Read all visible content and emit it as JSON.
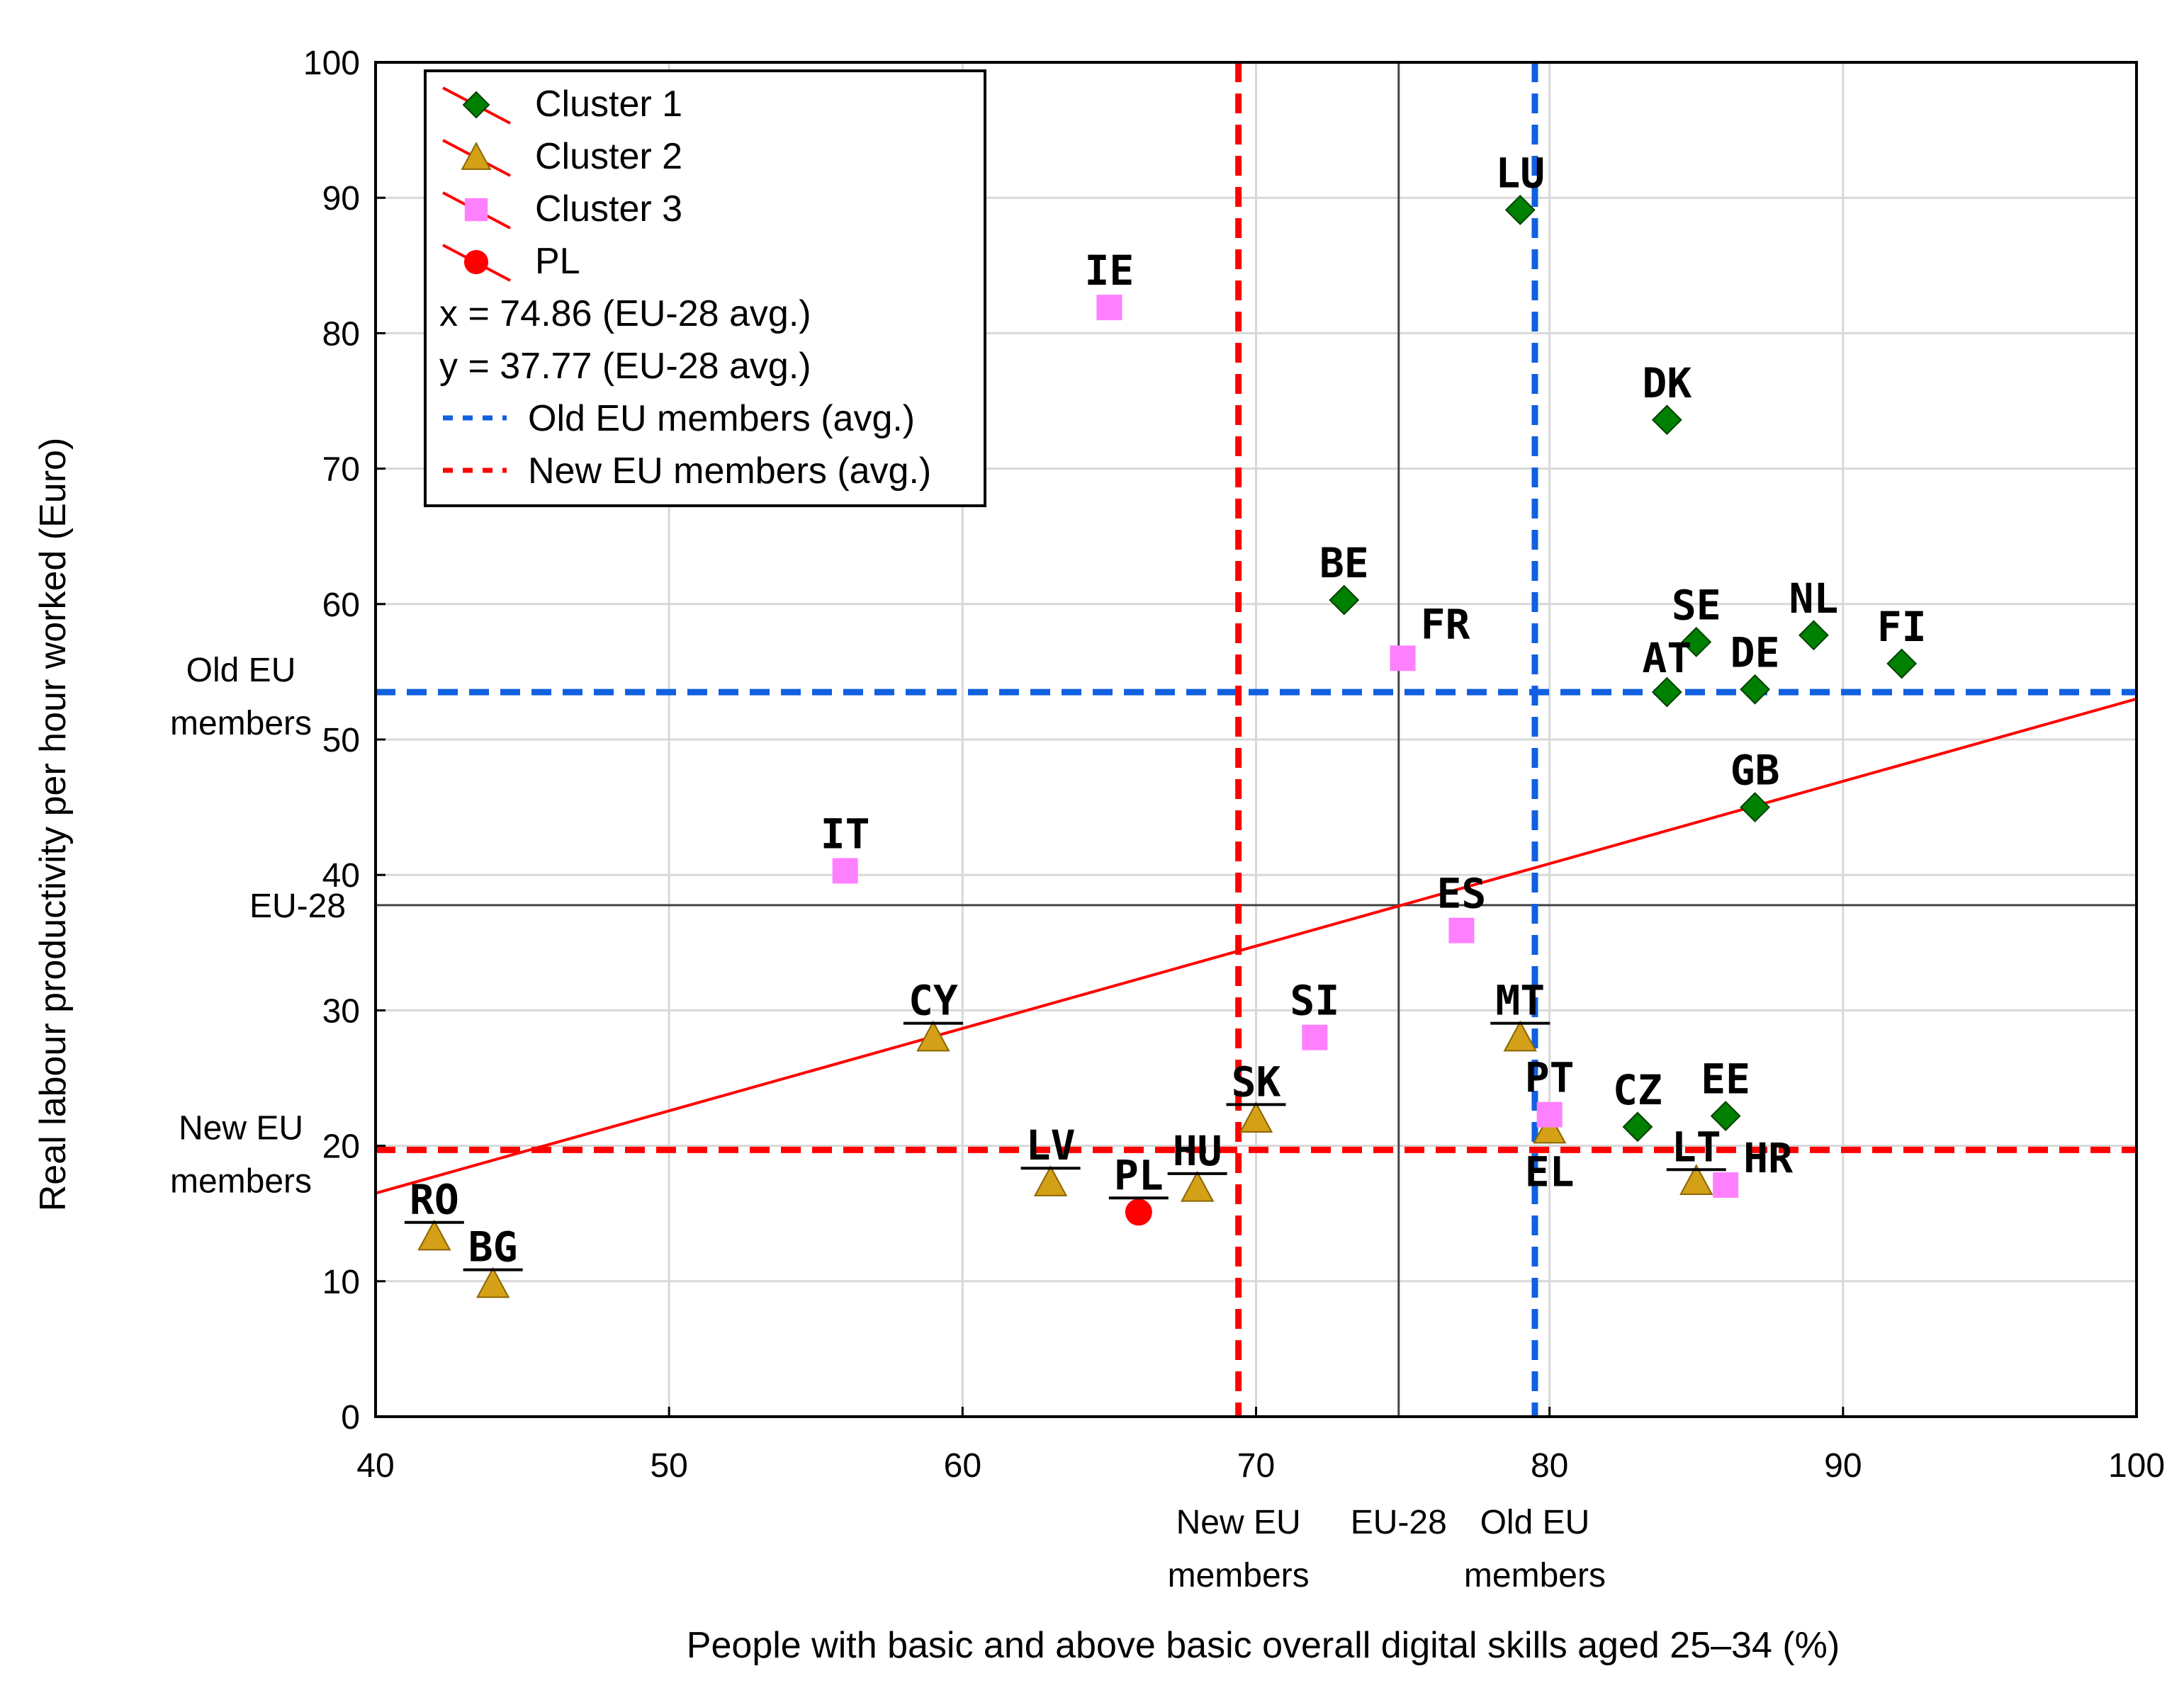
{
  "chart_data": {
    "type": "scatter",
    "xlabel": "People with basic and above basic overall digital skills aged 25–34 (%)",
    "ylabel": "Real labour productivity per hour worked (Euro)",
    "xlim": [
      40,
      100
    ],
    "ylim": [
      0,
      100
    ],
    "x_ticks": [
      "40",
      "50",
      "60",
      "70",
      "80",
      "90",
      "100"
    ],
    "y_ticks": [
      "0",
      "10",
      "20",
      "30",
      "40",
      "50",
      "60",
      "70",
      "80",
      "90",
      "100"
    ],
    "grid": true,
    "legend_position": "top-left",
    "colors": {
      "cluster1": "#008000",
      "cluster2": "#d4a017",
      "cluster3": "#ff80ff",
      "pl": "#ff0000",
      "old_eu": "#1060e0",
      "new_eu": "#ff0000",
      "eu28": "#444444",
      "trend": "#ff0000",
      "grid": "#d8d8d8"
    },
    "legend": [
      {
        "key": "cluster1",
        "label": "Cluster 1",
        "marker": "diamond"
      },
      {
        "key": "cluster2",
        "label": "Cluster 2",
        "marker": "triangle"
      },
      {
        "key": "cluster3",
        "label": "Cluster 3",
        "marker": "square"
      },
      {
        "key": "pl",
        "label": "PL",
        "marker": "circle"
      },
      {
        "key": "eu_x",
        "label": "x = 74.86 (EU-28 avg.)",
        "marker": "none"
      },
      {
        "key": "eu_y",
        "label": "y = 37.77 (EU-28 avg.)",
        "marker": "none"
      },
      {
        "key": "old_eu",
        "label": "Old EU members (avg.)",
        "marker": "dash-blue"
      },
      {
        "key": "new_eu",
        "label": "New EU members (avg.)",
        "marker": "dash-red"
      }
    ],
    "reference_lines": {
      "eu28": {
        "x": 74.86,
        "y": 37.77,
        "label": "EU-28"
      },
      "old_eu": {
        "x": 79.5,
        "y": 53.5,
        "label_line1": "Old EU",
        "label_line2": "members"
      },
      "new_eu": {
        "x": 69.4,
        "y": 19.7,
        "label_line1": "New EU",
        "label_line2": "members"
      }
    },
    "trend_line": {
      "x1": 40,
      "y1": 16.5,
      "x2": 100,
      "y2": 53.0
    },
    "series": [
      {
        "name": "Cluster 1",
        "key": "cluster1",
        "marker": "diamond",
        "points": [
          {
            "label": "LU",
            "x": 79,
            "y": 89.1
          },
          {
            "label": "DK",
            "x": 84,
            "y": 73.6
          },
          {
            "label": "BE",
            "x": 73,
            "y": 60.3
          },
          {
            "label": "SE",
            "x": 85,
            "y": 57.2
          },
          {
            "label": "NL",
            "x": 89,
            "y": 57.7
          },
          {
            "label": "FI",
            "x": 92,
            "y": 55.6
          },
          {
            "label": "AT",
            "x": 84,
            "y": 53.5
          },
          {
            "label": "DE",
            "x": 87,
            "y": 53.7
          },
          {
            "label": "GB",
            "x": 87,
            "y": 45.0
          },
          {
            "label": "CZ",
            "x": 83,
            "y": 21.4
          },
          {
            "label": "EE",
            "x": 86,
            "y": 22.2
          }
        ]
      },
      {
        "name": "Cluster 2",
        "key": "cluster2",
        "marker": "triangle",
        "points": [
          {
            "label": "CY",
            "x": 59,
            "y": 28.0
          },
          {
            "label": "MT",
            "x": 79,
            "y": 28.0
          },
          {
            "label": "SK",
            "x": 70,
            "y": 22.0
          },
          {
            "label": "LV",
            "x": 63,
            "y": 17.3
          },
          {
            "label": "HU",
            "x": 68,
            "y": 16.9
          },
          {
            "label": "EL",
            "x": 80,
            "y": 21.2
          },
          {
            "label": "LT",
            "x": 85,
            "y": 17.4
          },
          {
            "label": "RO",
            "x": 42,
            "y": 13.3
          },
          {
            "label": "BG",
            "x": 44,
            "y": 9.8
          }
        ]
      },
      {
        "name": "Cluster 3",
        "key": "cluster3",
        "marker": "square",
        "points": [
          {
            "label": "IE",
            "x": 65,
            "y": 81.9
          },
          {
            "label": "FR",
            "x": 75,
            "y": 56.0
          },
          {
            "label": "IT",
            "x": 56,
            "y": 40.3
          },
          {
            "label": "ES",
            "x": 77,
            "y": 35.9
          },
          {
            "label": "SI",
            "x": 72,
            "y": 28.0
          },
          {
            "label": "PT",
            "x": 80,
            "y": 22.3
          },
          {
            "label": "HR",
            "x": 86,
            "y": 17.1
          }
        ]
      },
      {
        "name": "PL",
        "key": "pl",
        "marker": "circle",
        "points": [
          {
            "label": "PL",
            "x": 66,
            "y": 15.1
          }
        ]
      }
    ]
  }
}
